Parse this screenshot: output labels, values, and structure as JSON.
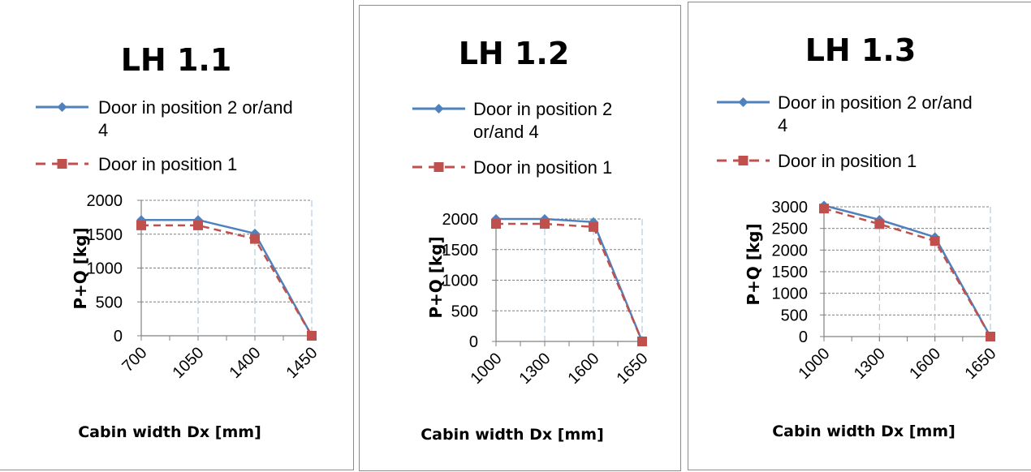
{
  "colors": {
    "series_door_2_4": "#4f81bd",
    "series_door_1": "#c0504d",
    "grid": "#808080",
    "border": "#8c8c8c"
  },
  "chart_data": [
    {
      "type": "line",
      "title": "LH 1.1",
      "xlabel": "Cabin width Dx [mm]",
      "ylabel": "P+Q [kg]",
      "categories": [
        "700",
        "1050",
        "1400",
        "1450"
      ],
      "ylim": [
        0,
        2000
      ],
      "yticks": [
        0,
        500,
        1000,
        1500,
        2000
      ],
      "legend_lines": [
        [
          "Door in position 2 or/and",
          "4"
        ],
        [
          "Door in position 1"
        ]
      ],
      "series": [
        {
          "name": "Door in position 2 or/and 4",
          "marker": "diamond",
          "style": "solid",
          "values": [
            1710,
            1710,
            1510,
            0
          ]
        },
        {
          "name": "Door in position 1",
          "marker": "square",
          "style": "dashed",
          "values": [
            1630,
            1630,
            1430,
            0
          ]
        }
      ]
    },
    {
      "type": "line",
      "title": "LH 1.2",
      "xlabel": "Cabin width Dx   [mm]",
      "ylabel": "P+Q [kg]",
      "categories": [
        "1000",
        "1300",
        "1600",
        "1650"
      ],
      "ylim": [
        0,
        2000
      ],
      "yticks": [
        0,
        500,
        1000,
        1500,
        2000
      ],
      "legend_lines": [
        [
          "Door in position 2",
          "or/and 4"
        ],
        [
          "Door in position 1"
        ]
      ],
      "series": [
        {
          "name": "Door in position 2 or/and 4",
          "marker": "diamond",
          "style": "solid",
          "values": [
            2000,
            2000,
            1950,
            0
          ]
        },
        {
          "name": "Door in position 1",
          "marker": "square",
          "style": "dashed",
          "values": [
            1920,
            1920,
            1870,
            0
          ]
        }
      ]
    },
    {
      "type": "line",
      "title": "LH 1.3",
      "xlabel": "Cabin width Dx   [mm]",
      "ylabel": "P+Q [kg]",
      "categories": [
        "1000",
        "1300",
        "1600",
        "1650"
      ],
      "ylim": [
        0,
        3000
      ],
      "yticks": [
        0,
        500,
        1000,
        1500,
        2000,
        2500,
        3000
      ],
      "legend_lines": [
        [
          "Door in position 2 or/and",
          "4"
        ],
        [
          "Door in position 1"
        ]
      ],
      "series": [
        {
          "name": "Door in position 2 or/and 4",
          "marker": "diamond",
          "style": "solid",
          "values": [
            3030,
            2700,
            2300,
            0
          ]
        },
        {
          "name": "Door in position 1",
          "marker": "square",
          "style": "dashed",
          "values": [
            2960,
            2600,
            2210,
            0
          ]
        }
      ]
    }
  ]
}
